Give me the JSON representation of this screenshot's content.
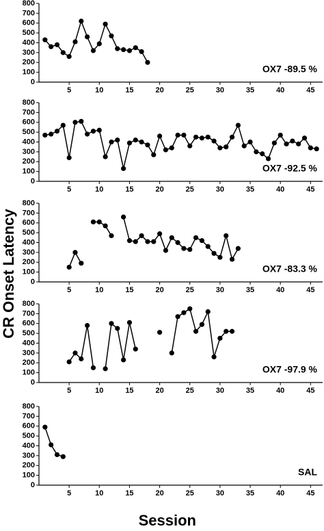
{
  "chart_data": [
    {
      "type": "line",
      "annotation": "OX7 -89.5 %",
      "ylabel": "CR Onset Latency",
      "series": [
        {
          "color": "#000000",
          "x": [
            1,
            2,
            3,
            4,
            5,
            6,
            7,
            8,
            9,
            10,
            11,
            12,
            13,
            14,
            15,
            16,
            17,
            18
          ],
          "values": [
            430,
            360,
            380,
            300,
            260,
            410,
            620,
            460,
            320,
            390,
            590,
            470,
            340,
            330,
            320,
            350,
            310,
            200
          ]
        }
      ],
      "xlim": [
        0,
        47
      ],
      "xticks": [
        5,
        10,
        15,
        20,
        25,
        30,
        35,
        40,
        45
      ],
      "ylim": [
        0,
        800
      ],
      "yticks": [
        0,
        100,
        200,
        300,
        400,
        500,
        600,
        700,
        800
      ]
    },
    {
      "type": "line",
      "annotation": "OX7 -92.5 %",
      "series": [
        {
          "color": "#000000",
          "x": [
            1,
            2,
            3,
            4,
            5,
            6,
            7,
            8,
            9,
            10,
            11,
            12,
            13,
            14,
            15,
            16,
            17,
            18,
            19,
            20,
            21,
            22,
            23,
            24,
            25,
            26,
            27,
            28,
            29,
            30,
            31,
            32,
            33,
            34,
            35,
            36,
            37,
            38,
            39,
            40,
            41,
            42,
            43,
            44,
            45,
            46
          ],
          "values": [
            470,
            480,
            510,
            570,
            240,
            600,
            610,
            480,
            510,
            520,
            250,
            400,
            420,
            130,
            390,
            420,
            400,
            370,
            270,
            460,
            320,
            340,
            470,
            470,
            360,
            450,
            440,
            450,
            410,
            340,
            350,
            450,
            570,
            360,
            400,
            300,
            280,
            230,
            390,
            470,
            380,
            410,
            380,
            440,
            340,
            330
          ]
        }
      ],
      "xlim": [
        0,
        47
      ],
      "xticks": [
        5,
        10,
        15,
        20,
        25,
        30,
        35,
        40,
        45
      ],
      "ylim": [
        0,
        800
      ],
      "yticks": [
        0,
        100,
        200,
        300,
        400,
        500,
        600,
        700,
        800
      ]
    },
    {
      "type": "line",
      "annotation": "OX7 -83.3 %",
      "series": [
        {
          "color": "#000000",
          "x": [
            5,
            6,
            7,
            8,
            9,
            10,
            11,
            12,
            13,
            14,
            15,
            16,
            17,
            18,
            19,
            20,
            21,
            22,
            23,
            24,
            25,
            26,
            27,
            28,
            29,
            30,
            31,
            32,
            33
          ],
          "values": [
            150,
            300,
            190,
            null,
            610,
            610,
            570,
            470,
            null,
            660,
            420,
            410,
            470,
            410,
            410,
            490,
            320,
            450,
            400,
            340,
            330,
            450,
            420,
            360,
            290,
            250,
            470,
            230,
            340
          ]
        }
      ],
      "xlim": [
        0,
        47
      ],
      "xticks": [
        5,
        10,
        15,
        20,
        25,
        30,
        35,
        40,
        45
      ],
      "ylim": [
        0,
        800
      ],
      "yticks": [
        0,
        100,
        200,
        300,
        400,
        500,
        600,
        700,
        800
      ]
    },
    {
      "type": "line",
      "annotation": "OX7 -97.9 %",
      "series": [
        {
          "color": "#000000",
          "x": [
            5,
            6,
            7,
            8,
            9,
            10,
            11,
            12,
            13,
            14,
            15,
            16,
            17,
            18,
            19,
            20,
            21,
            22,
            23,
            24,
            25,
            26,
            27,
            28,
            29,
            30,
            31,
            32,
            33
          ],
          "values": [
            210,
            300,
            240,
            580,
            150,
            null,
            140,
            600,
            550,
            230,
            610,
            340,
            null,
            null,
            null,
            510,
            null,
            300,
            670,
            710,
            750,
            520,
            590,
            720,
            260,
            450,
            520,
            520,
            null
          ]
        }
      ],
      "xlim": [
        0,
        47
      ],
      "xticks": [
        5,
        10,
        15,
        20,
        25,
        30,
        35,
        40,
        45
      ],
      "ylim": [
        0,
        800
      ],
      "yticks": [
        0,
        100,
        200,
        300,
        400,
        500,
        600,
        700,
        800
      ]
    },
    {
      "type": "line",
      "annotation": "SAL",
      "xlabel": "Session",
      "series": [
        {
          "color": "#000000",
          "x": [
            1,
            2,
            3,
            4
          ],
          "values": [
            590,
            410,
            310,
            290
          ]
        }
      ],
      "xlim": [
        0,
        47
      ],
      "xticks": [
        5,
        10,
        15,
        20,
        25,
        30,
        35,
        40,
        45
      ],
      "ylim": [
        0,
        800
      ],
      "yticks": [
        0,
        100,
        200,
        300,
        400,
        500,
        600,
        700,
        800
      ]
    }
  ]
}
